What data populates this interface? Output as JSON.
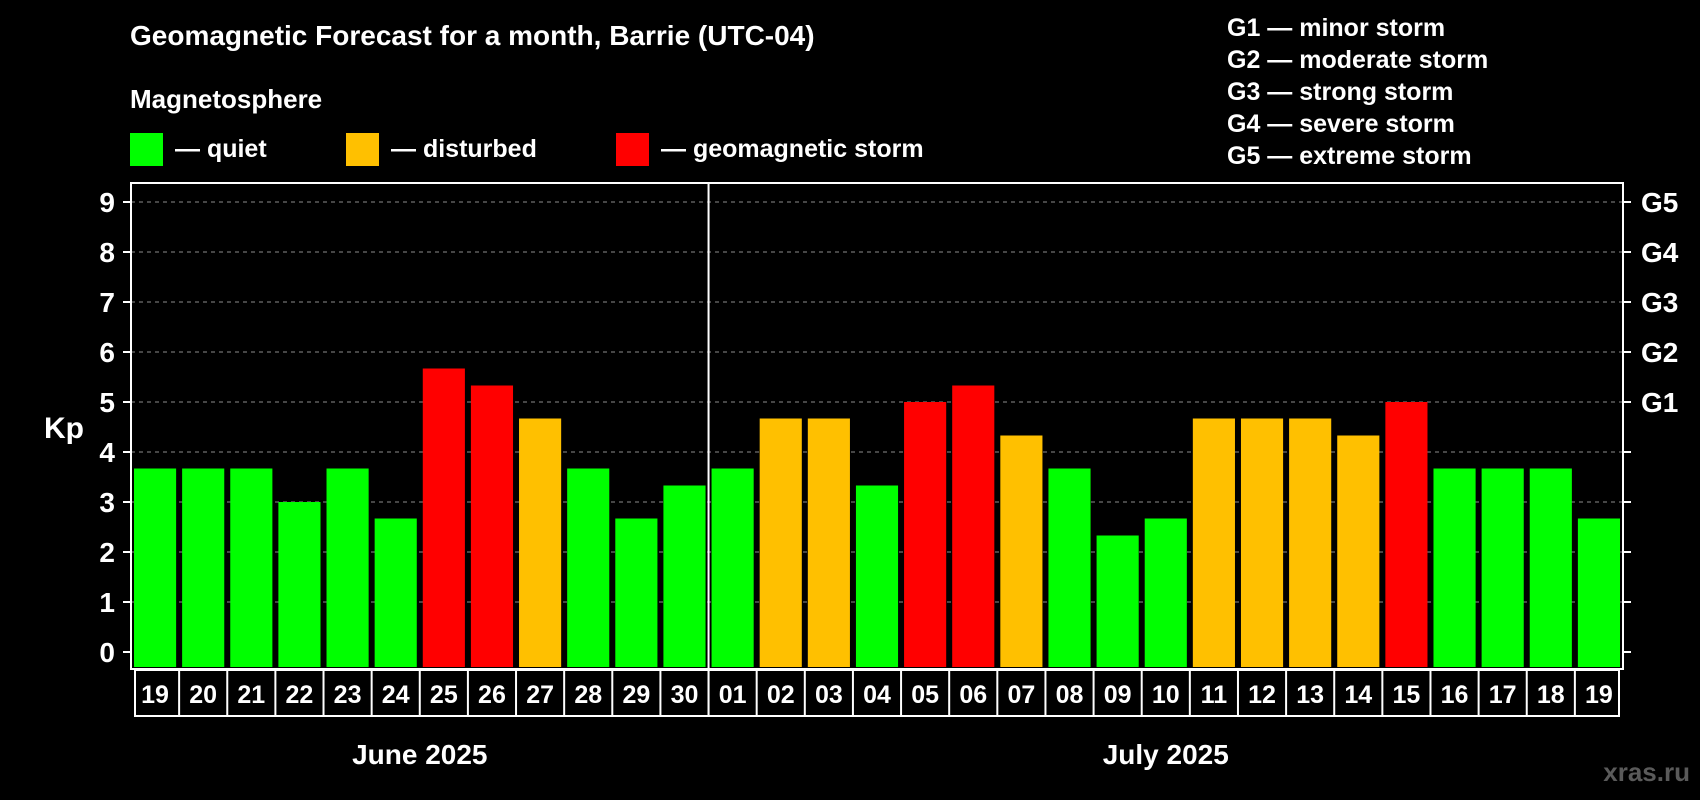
{
  "header": {
    "title": "Geomagnetic Forecast for a month, Barrie (UTC-04)",
    "subtitle": "Magnetosphere"
  },
  "legend": {
    "items": [
      {
        "label": "— quiet",
        "color": "#00ff00"
      },
      {
        "label": "— disturbed",
        "color": "#ffc000"
      },
      {
        "label": "— geomagnetic storm",
        "color": "#ff0000"
      }
    ]
  },
  "storm_scale": [
    {
      "label": "G1 — minor storm"
    },
    {
      "label": "G2 — moderate storm"
    },
    {
      "label": "G3 — strong storm"
    },
    {
      "label": "G4 — severe storm"
    },
    {
      "label": "G5 — extreme storm"
    }
  ],
  "watermark": "xras.ru",
  "chart_data": {
    "type": "bar",
    "title": "Geomagnetic Forecast for a month, Barrie (UTC-04)",
    "ylabel": "Kp",
    "xlabel": "",
    "ylim": [
      0,
      9
    ],
    "yticks": [
      "0",
      "1",
      "2",
      "3",
      "4",
      "5",
      "6",
      "7",
      "8",
      "9"
    ],
    "right_axis_labels": [
      {
        "kp": 5,
        "label": "G1"
      },
      {
        "kp": 6,
        "label": "G2"
      },
      {
        "kp": 7,
        "label": "G3"
      },
      {
        "kp": 8,
        "label": "G4"
      },
      {
        "kp": 9,
        "label": "G5"
      }
    ],
    "grid": true,
    "months": [
      {
        "label": "June 2025",
        "start_index": 0,
        "end_index": 11
      },
      {
        "label": "July 2025",
        "start_index": 12,
        "end_index": 30
      }
    ],
    "categories": [
      "19",
      "20",
      "21",
      "22",
      "23",
      "24",
      "25",
      "26",
      "27",
      "28",
      "29",
      "30",
      "01",
      "02",
      "03",
      "04",
      "05",
      "06",
      "07",
      "08",
      "09",
      "10",
      "11",
      "12",
      "13",
      "14",
      "15",
      "16",
      "17",
      "18",
      "19"
    ],
    "values": [
      3.67,
      3.67,
      3.67,
      3.0,
      3.67,
      2.67,
      5.67,
      5.33,
      4.67,
      3.67,
      2.67,
      3.33,
      3.67,
      4.67,
      4.67,
      3.33,
      5.0,
      5.33,
      4.33,
      3.67,
      2.33,
      2.67,
      4.67,
      4.67,
      4.67,
      4.33,
      5.0,
      3.67,
      3.67,
      3.67,
      2.67
    ],
    "levels": [
      "quiet",
      "quiet",
      "quiet",
      "quiet",
      "quiet",
      "quiet",
      "storm",
      "storm",
      "disturbed",
      "quiet",
      "quiet",
      "quiet",
      "quiet",
      "disturbed",
      "disturbed",
      "quiet",
      "storm",
      "storm",
      "disturbed",
      "quiet",
      "quiet",
      "quiet",
      "disturbed",
      "disturbed",
      "disturbed",
      "disturbed",
      "storm",
      "quiet",
      "quiet",
      "quiet",
      "quiet"
    ],
    "level_colors": {
      "quiet": "#00ff00",
      "disturbed": "#ffc000",
      "storm": "#ff0000"
    }
  }
}
